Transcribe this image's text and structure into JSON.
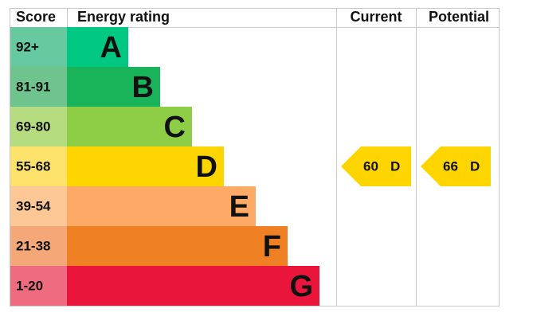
{
  "header": {
    "score": "Score",
    "rating": "Energy rating",
    "current": "Current",
    "potential": "Potential"
  },
  "bands": [
    {
      "score": "92+",
      "letter": "A",
      "color": "#00c781",
      "light": "#66c9a0"
    },
    {
      "score": "81-91",
      "letter": "B",
      "color": "#19b459",
      "light": "#6fc48d"
    },
    {
      "score": "69-80",
      "letter": "C",
      "color": "#8dce46",
      "light": "#b6dc80"
    },
    {
      "score": "55-68",
      "letter": "D",
      "color": "#ffd500",
      "light": "#fde36c"
    },
    {
      "score": "39-54",
      "letter": "E",
      "color": "#fcaa65",
      "light": "#fdc796"
    },
    {
      "score": "21-38",
      "letter": "F",
      "color": "#ef8023",
      "light": "#f4a878"
    },
    {
      "score": "1-20",
      "letter": "G",
      "color": "#e9153b",
      "light": "#ef6c80"
    }
  ],
  "current": {
    "score": 60,
    "rating": "D"
  },
  "potential": {
    "score": 66,
    "rating": "D"
  }
}
